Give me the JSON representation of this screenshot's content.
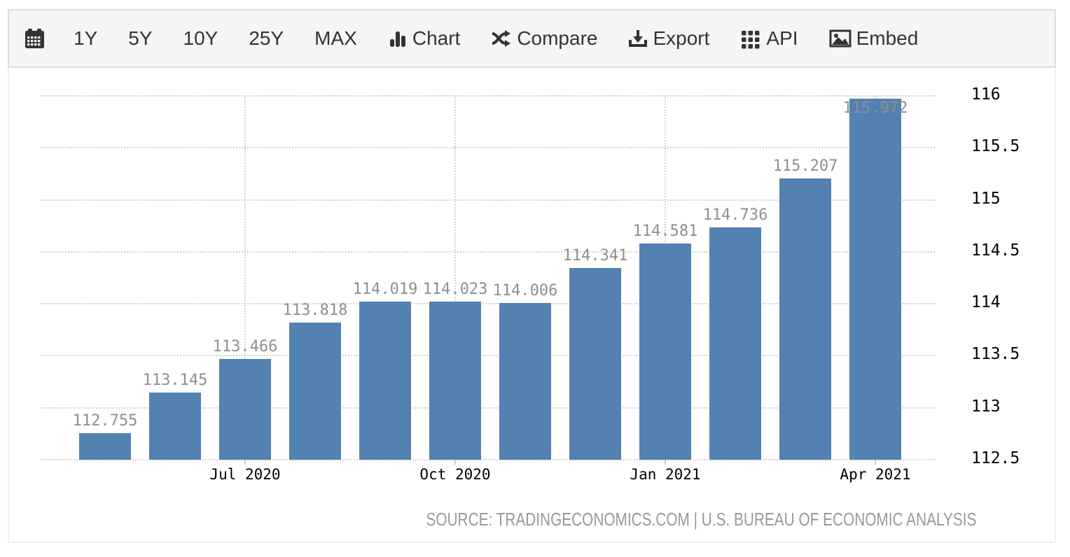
{
  "toolbar": {
    "items": [
      {
        "id": "calendar",
        "label": ""
      },
      {
        "id": "1y",
        "label": "1Y"
      },
      {
        "id": "5y",
        "label": "5Y"
      },
      {
        "id": "10y",
        "label": "10Y"
      },
      {
        "id": "25y",
        "label": "25Y"
      },
      {
        "id": "max",
        "label": "MAX"
      },
      {
        "id": "chart",
        "label": "Chart"
      },
      {
        "id": "compare",
        "label": "Compare"
      },
      {
        "id": "export",
        "label": "Export"
      },
      {
        "id": "api",
        "label": "API"
      },
      {
        "id": "embed",
        "label": "Embed"
      }
    ]
  },
  "chart_data": {
    "type": "bar",
    "values": [
      112.755,
      113.145,
      113.466,
      113.818,
      114.019,
      114.023,
      114.006,
      114.341,
      114.581,
      114.736,
      115.207,
      115.972
    ],
    "bar_labels": [
      "112.755",
      "113.145",
      "113.466",
      "113.818",
      "114.019",
      "114.023",
      "114.006",
      "114.341",
      "114.581",
      "114.736",
      "115.207",
      "115.972"
    ],
    "x_ticks": [
      {
        "index": 2,
        "label": "Jul 2020"
      },
      {
        "index": 5,
        "label": "Oct 2020"
      },
      {
        "index": 8,
        "label": "Jan 2021"
      },
      {
        "index": 11,
        "label": "Apr 2021"
      }
    ],
    "y_ticks": [
      "116",
      "115.5",
      "115",
      "114.5",
      "114",
      "113.5",
      "113",
      "112.5"
    ],
    "ylim": [
      112.5,
      116
    ],
    "grid": "dotted, horizontal and vertical at labeled ticks",
    "legend": "none",
    "title": ""
  },
  "colors": {
    "bar": "#5381B1",
    "value_label": "#8f8f8f",
    "axis_label": "#000000",
    "grid": "#d2d2d2",
    "toolbar_bg": "#f5f5f5",
    "toolbar_text": "#333333",
    "source_text": "#999999"
  },
  "source_line": "SOURCE: TRADINGECONOMICS.COM | U.S. BUREAU OF ECONOMIC ANALYSIS"
}
